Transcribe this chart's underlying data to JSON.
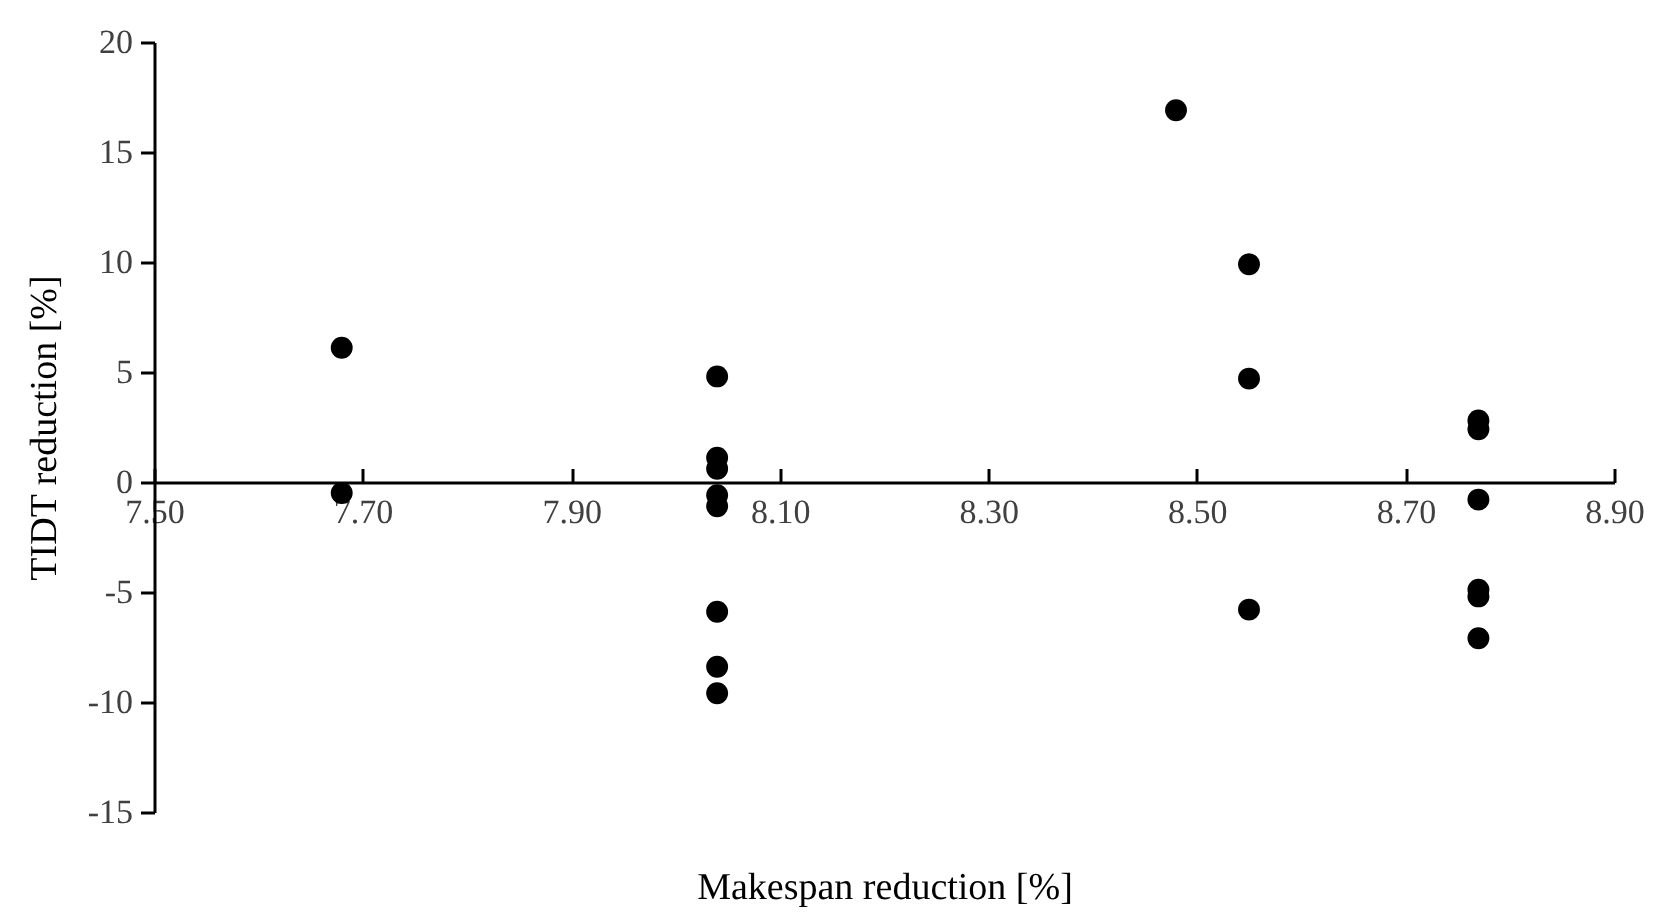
{
  "chart_data": {
    "type": "scatter",
    "xlabel": "Makespan reduction [%]",
    "ylabel": "TIDT reduction [%]",
    "x": [
      7.68,
      7.68,
      8.04,
      8.04,
      8.04,
      8.04,
      8.04,
      8.04,
      8.04,
      8.04,
      8.48,
      8.55,
      8.55,
      8.55,
      8.77,
      8.77,
      8.77,
      8.77,
      8.77,
      8.77
    ],
    "series": [
      {
        "color": "#000000",
        "values": [
          6.1,
          -0.5,
          4.8,
          1.1,
          0.6,
          -0.6,
          -1.1,
          -5.9,
          -8.4,
          -9.6,
          16.9,
          9.9,
          4.7,
          -5.8,
          2.8,
          2.4,
          -0.8,
          -4.9,
          -5.2,
          -7.1
        ]
      }
    ],
    "xlim": [
      7.5,
      8.9
    ],
    "xticks": [
      {
        "value": 7.5,
        "label": "7.50"
      },
      {
        "value": 7.7,
        "label": "7.70"
      },
      {
        "value": 7.9,
        "label": "7.90"
      },
      {
        "value": 8.1,
        "label": "8.10"
      },
      {
        "value": 8.3,
        "label": "8.30"
      },
      {
        "value": 8.5,
        "label": "8.50"
      },
      {
        "value": 8.7,
        "label": "8.70"
      },
      {
        "value": 8.9,
        "label": "8.90"
      }
    ],
    "ylim": [
      -15,
      20
    ],
    "yticks": [
      -15,
      -10,
      -5,
      0,
      5,
      10,
      15,
      20
    ],
    "grid": false,
    "legend": false,
    "marker": "circle"
  }
}
